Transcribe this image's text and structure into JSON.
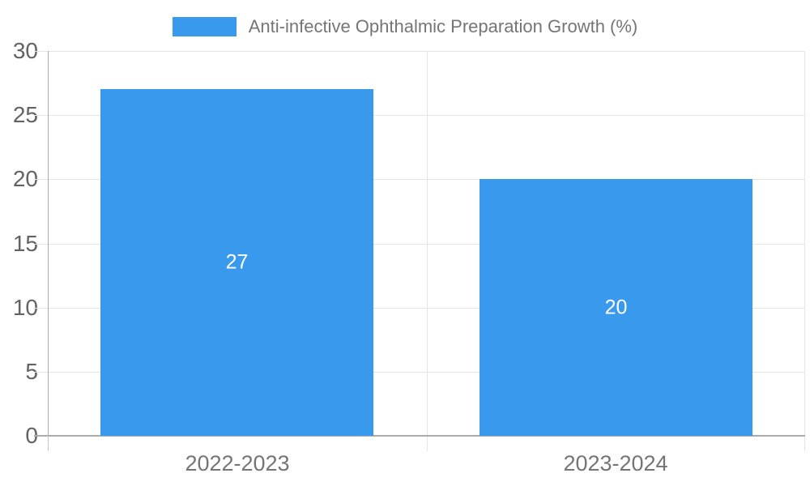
{
  "chart_data": {
    "type": "bar",
    "title": "Anti-infective Ophthalmic Preparation Growth (%)",
    "categories": [
      "2022-2023",
      "2023-2024"
    ],
    "series": [
      {
        "name": "Anti-infective Ophthalmic Preparation Growth (%)",
        "values": [
          27,
          20
        ]
      }
    ],
    "values": [
      27,
      20
    ],
    "data_labels": [
      "27",
      "20"
    ],
    "xlabel": "",
    "ylabel": "",
    "ylim": [
      0,
      30
    ],
    "yticks": [
      0,
      5,
      10,
      15,
      20,
      25,
      30
    ],
    "grid": true,
    "legend_position": "top"
  },
  "legend": {
    "label": "Anti-infective Ophthalmic Preparation Growth (%)"
  },
  "colors": {
    "bar": "#3999ED",
    "gridline": "#E4E4E4",
    "axis_line": "#ABABAB",
    "below_axis_tick": "#C9C9C9",
    "y_tick_label": "#636363",
    "x_tick_label": "#757575",
    "legend_text": "#757575",
    "data_label": "#FFFFFF",
    "background": "#FFFFFF"
  }
}
